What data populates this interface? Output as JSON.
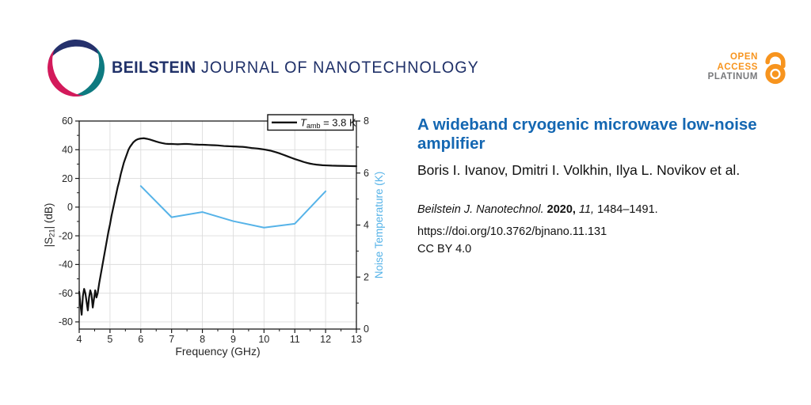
{
  "header": {
    "journal_name_bold": "BEILSTEIN",
    "journal_name_rest": " JOURNAL OF NANOTECHNOLOGY",
    "open_access": {
      "line1": "OPEN",
      "line2": "ACCESS",
      "line3": "PLATINUM"
    }
  },
  "colors": {
    "navy": "#203169",
    "swirl_blue": "#25316c",
    "swirl_teal": "#0e7a80",
    "swirl_crimson": "#d31a5b",
    "title_blue": "#1467b2",
    "oa_orange": "#f7941e",
    "oa_gray": "#77787b",
    "curve_black": "#111111",
    "curve_blue": "#56b3e8",
    "grid": "#dcdcdc",
    "frame": "#1a1a1a"
  },
  "chart_data": {
    "type": "line",
    "xlabel": "Frequency (GHz)",
    "ylabel_left": {
      "pre": "|S",
      "sub": "21",
      "post": "| (dB)",
      "flat": "|S21| (dB)"
    },
    "ylabel_right": "Noise Temperature (K)",
    "xlim": [
      4,
      13
    ],
    "xticks": [
      4,
      5,
      6,
      7,
      8,
      9,
      10,
      11,
      12,
      13
    ],
    "x_minor_step": 0.5,
    "ylim_left": [
      -85,
      60
    ],
    "yticks_left": [
      60,
      40,
      20,
      0,
      -20,
      -40,
      -60,
      -80
    ],
    "y_left_minor_step": 10,
    "ylim_right": [
      0,
      8
    ],
    "yticks_right": [
      0,
      2,
      4,
      6,
      8
    ],
    "y_right_minor_step": 1,
    "grid": true,
    "legend": {
      "position": "top-right",
      "var": "T",
      "sub": "amb",
      "rest": " = 3.8 K",
      "flat": "T_amb = 3.8 K"
    },
    "series": [
      {
        "name": "S21 gain at Tamb = 3.8 K",
        "axis": "left",
        "color": "#111111",
        "width": 2.2,
        "points": [
          [
            4.0,
            -59
          ],
          [
            4.04,
            -68
          ],
          [
            4.08,
            -75
          ],
          [
            4.12,
            -62
          ],
          [
            4.16,
            -57
          ],
          [
            4.2,
            -60
          ],
          [
            4.24,
            -66
          ],
          [
            4.28,
            -72
          ],
          [
            4.32,
            -63
          ],
          [
            4.36,
            -58
          ],
          [
            4.4,
            -61
          ],
          [
            4.44,
            -70
          ],
          [
            4.48,
            -64
          ],
          [
            4.52,
            -58
          ],
          [
            4.56,
            -63
          ],
          [
            4.6,
            -60
          ],
          [
            4.65,
            -53
          ],
          [
            4.7,
            -47
          ],
          [
            4.75,
            -41
          ],
          [
            4.8,
            -35
          ],
          [
            4.85,
            -29
          ],
          [
            4.9,
            -23
          ],
          [
            4.95,
            -17
          ],
          [
            5.0,
            -12
          ],
          [
            5.05,
            -6
          ],
          [
            5.1,
            -1
          ],
          [
            5.15,
            4
          ],
          [
            5.2,
            9
          ],
          [
            5.25,
            14
          ],
          [
            5.3,
            18
          ],
          [
            5.35,
            23
          ],
          [
            5.4,
            27
          ],
          [
            5.45,
            31
          ],
          [
            5.5,
            34
          ],
          [
            5.55,
            37
          ],
          [
            5.6,
            40
          ],
          [
            5.65,
            42
          ],
          [
            5.7,
            43.5
          ],
          [
            5.75,
            45
          ],
          [
            5.8,
            46
          ],
          [
            5.85,
            46.8
          ],
          [
            5.9,
            47.3
          ],
          [
            5.95,
            47.6
          ],
          [
            6.0,
            47.8
          ],
          [
            6.1,
            48
          ],
          [
            6.2,
            47.6
          ],
          [
            6.3,
            47.1
          ],
          [
            6.4,
            46.4
          ],
          [
            6.5,
            45.7
          ],
          [
            6.6,
            45.1
          ],
          [
            6.7,
            44.6
          ],
          [
            6.8,
            44.2
          ],
          [
            6.9,
            44
          ],
          [
            7.0,
            44
          ],
          [
            7.1,
            43.9
          ],
          [
            7.2,
            43.8
          ],
          [
            7.3,
            43.9
          ],
          [
            7.4,
            44
          ],
          [
            7.5,
            44
          ],
          [
            7.6,
            43.9
          ],
          [
            7.7,
            43.7
          ],
          [
            7.8,
            43.6
          ],
          [
            7.9,
            43.5
          ],
          [
            8.0,
            43.5
          ],
          [
            8.1,
            43.4
          ],
          [
            8.2,
            43.3
          ],
          [
            8.3,
            43.2
          ],
          [
            8.4,
            43.1
          ],
          [
            8.5,
            43
          ],
          [
            8.6,
            42.8
          ],
          [
            8.7,
            42.6
          ],
          [
            8.8,
            42.5
          ],
          [
            8.9,
            42.4
          ],
          [
            9.0,
            42.3
          ],
          [
            9.1,
            42.2
          ],
          [
            9.2,
            42.1
          ],
          [
            9.3,
            42
          ],
          [
            9.4,
            41.8
          ],
          [
            9.5,
            41.5
          ],
          [
            9.6,
            41.2
          ],
          [
            9.7,
            41
          ],
          [
            9.8,
            40.8
          ],
          [
            9.9,
            40.5
          ],
          [
            10.0,
            40.2
          ],
          [
            10.1,
            39.8
          ],
          [
            10.2,
            39.4
          ],
          [
            10.3,
            38.8
          ],
          [
            10.4,
            38.2
          ],
          [
            10.5,
            37.5
          ],
          [
            10.6,
            36.7
          ],
          [
            10.7,
            35.9
          ],
          [
            10.8,
            35.1
          ],
          [
            10.9,
            34.3
          ],
          [
            11.0,
            33.5
          ],
          [
            11.1,
            32.8
          ],
          [
            11.2,
            32.1
          ],
          [
            11.3,
            31.4
          ],
          [
            11.4,
            30.8
          ],
          [
            11.5,
            30.3
          ],
          [
            11.6,
            29.9
          ],
          [
            11.7,
            29.6
          ],
          [
            11.8,
            29.4
          ],
          [
            11.9,
            29.2
          ],
          [
            12.0,
            29.1
          ],
          [
            12.2,
            28.9
          ],
          [
            12.4,
            28.8
          ],
          [
            12.6,
            28.7
          ],
          [
            12.8,
            28.6
          ],
          [
            13.0,
            28.5
          ]
        ]
      },
      {
        "name": "Noise temperature",
        "axis": "right",
        "color": "#56b3e8",
        "width": 2,
        "points": [
          [
            6,
            5.5
          ],
          [
            7,
            4.3
          ],
          [
            8,
            4.5
          ],
          [
            9,
            4.15
          ],
          [
            10,
            3.9
          ],
          [
            11,
            4.05
          ],
          [
            12,
            5.3
          ]
        ]
      }
    ]
  },
  "paper": {
    "title": "A wideband cryogenic microwave low-noise amplifier",
    "authors": "Boris I. Ivanov, Dmitri I. Volkhin, Ilya L. Novikov et al.",
    "citation": {
      "journal": "Beilstein J. Nanotechnol. ",
      "year": "2020, ",
      "volume": "11, ",
      "pages": "1484–1491."
    },
    "doi": "https://doi.org/10.3762/bjnano.11.131",
    "license": "CC BY 4.0"
  }
}
